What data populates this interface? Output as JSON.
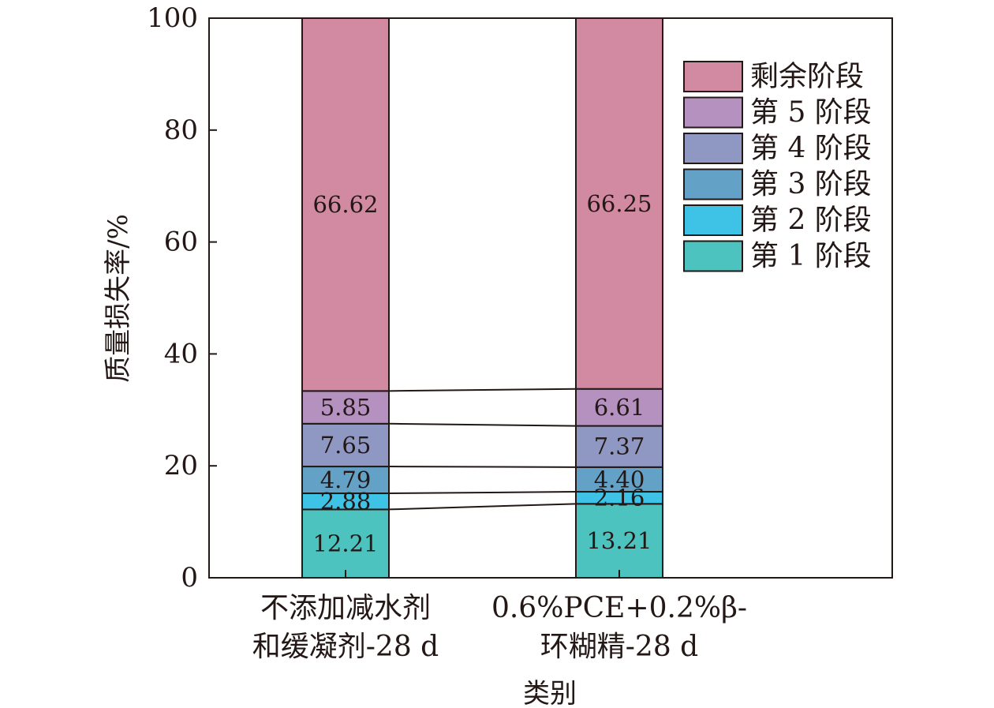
{
  "chart_data": {
    "type": "bar",
    "stacked": true,
    "xlabel": "类别",
    "ylabel": "质量损失率/%",
    "ylim": [
      0,
      100
    ],
    "yticks": [
      0,
      20,
      40,
      60,
      80,
      100
    ],
    "grid": false,
    "legend_position": "top-right",
    "categories": [
      {
        "lines": [
          "不添加减水剂",
          "和缓凝剂-28 d"
        ]
      },
      {
        "lines": [
          "0.6%PCE+0.2%β-",
          "环糊精-28 d"
        ]
      }
    ],
    "series": [
      {
        "name": "第 1 阶段",
        "color": "#4dc3bf",
        "values": [
          12.21,
          13.21
        ],
        "labels": [
          "12.21",
          "13.21"
        ]
      },
      {
        "name": "第 2 阶段",
        "color": "#3ec3e6",
        "values": [
          2.88,
          2.16
        ],
        "labels": [
          "2.88",
          "2.16"
        ]
      },
      {
        "name": "第 3 阶段",
        "color": "#64a1c7",
        "values": [
          4.79,
          4.4
        ],
        "labels": [
          "4.79",
          "4.40"
        ]
      },
      {
        "name": "第 4 阶段",
        "color": "#8f98c3",
        "values": [
          7.65,
          7.37
        ],
        "labels": [
          "7.65",
          "7.37"
        ]
      },
      {
        "name": "第 5 阶段",
        "color": "#b591c0",
        "values": [
          5.85,
          6.61
        ],
        "labels": [
          "5.85",
          "6.61"
        ]
      },
      {
        "name": "剩余阶段",
        "color": "#d28aa3",
        "values": [
          66.62,
          66.25
        ],
        "labels": [
          "66.62",
          "66.25"
        ]
      }
    ]
  }
}
